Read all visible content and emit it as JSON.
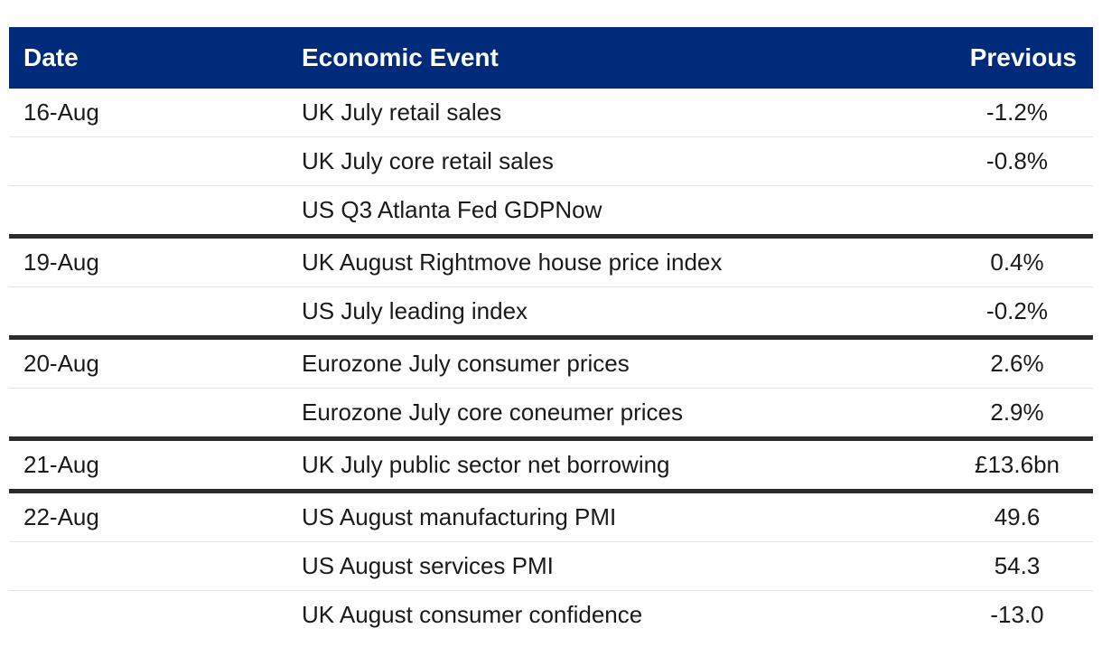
{
  "headers": {
    "date": "Date",
    "event": "Economic Event",
    "previous": "Previous"
  },
  "rows": [
    {
      "date": "16-Aug",
      "event": "UK July retail sales",
      "previous": "-1.2%"
    },
    {
      "date": "",
      "event": "UK July core retail sales",
      "previous": "-0.8%"
    },
    {
      "date": "",
      "event": "US Q3 Atlanta Fed GDPNow",
      "previous": ""
    },
    {
      "date": "19-Aug",
      "event": "UK August Rightmove house price index",
      "previous": "0.4%"
    },
    {
      "date": "",
      "event": "US July leading index",
      "previous": "-0.2%"
    },
    {
      "date": "20-Aug",
      "event": "Eurozone July consumer prices",
      "previous": "2.6%"
    },
    {
      "date": "",
      "event": "Eurozone July core coneumer prices",
      "previous": "2.9%"
    },
    {
      "date": "21-Aug",
      "event": "UK July public sector net borrowing",
      "previous": "£13.6bn"
    },
    {
      "date": "22-Aug",
      "event": "US August manufacturing PMI",
      "previous": "49.6"
    },
    {
      "date": "",
      "event": "US August services PMI",
      "previous": "54.3"
    },
    {
      "date": "",
      "event": "UK August consumer confidence",
      "previous": "-13.0"
    }
  ],
  "colors": {
    "header_bg": "#002b7a",
    "header_text": "#ffffff",
    "group_divider": "#2b2b2b",
    "row_divider": "#e6e6e6"
  }
}
